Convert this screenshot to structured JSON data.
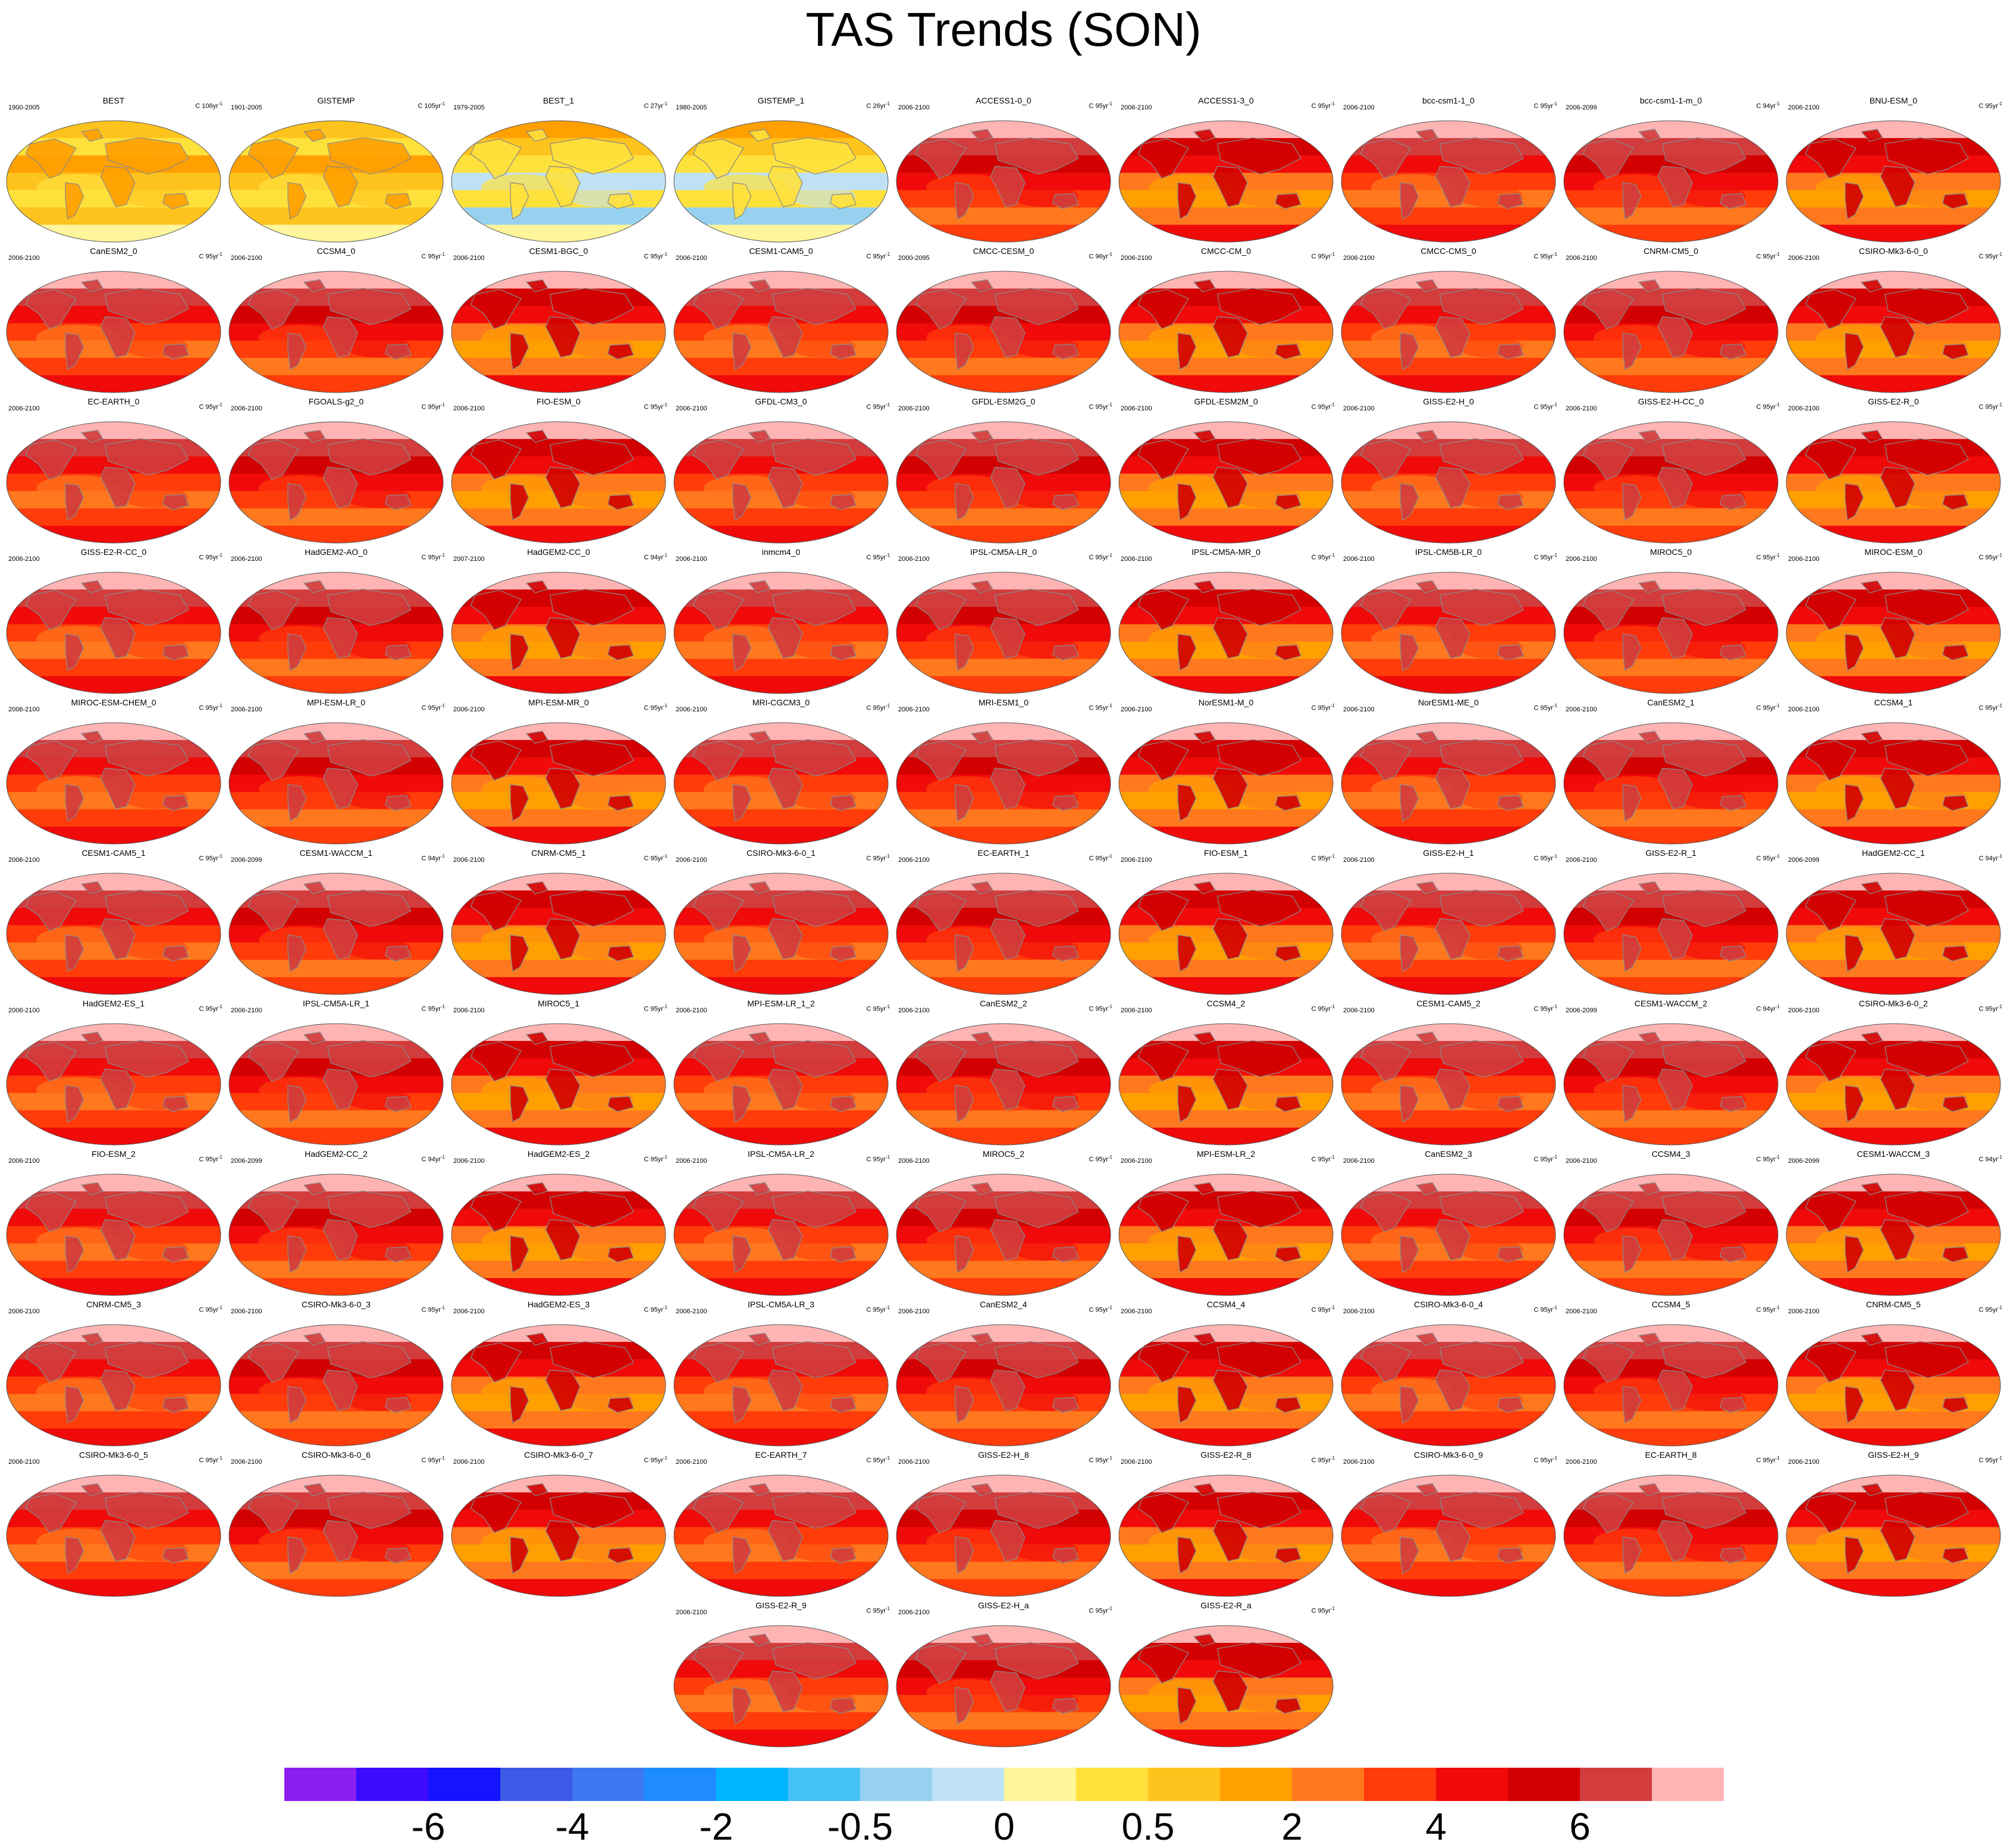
{
  "chart_data": {
    "type": "heatmap",
    "title": "TAS Trends (SON)",
    "projection": "global map panels, one per dataset/model run",
    "panels": [
      {
        "name": "BEST",
        "period": "1900-2005",
        "units": "C 106yr",
        "kind": "obs_long"
      },
      {
        "name": "GISTEMP",
        "period": "1901-2005",
        "units": "C 105yr",
        "kind": "obs_long"
      },
      {
        "name": "BEST_1",
        "period": "1979-2005",
        "units": "C 27yr",
        "kind": "obs_short"
      },
      {
        "name": "GISTEMP_1",
        "period": "1980-2005",
        "units": "C 26yr",
        "kind": "obs_short"
      },
      {
        "name": "ACCESS1-0_0",
        "period": "2006-2100",
        "units": "C 95yr",
        "kind": "model"
      },
      {
        "name": "ACCESS1-3_0",
        "period": "2006-2100",
        "units": "C 95yr",
        "kind": "model"
      },
      {
        "name": "bcc-csm1-1_0",
        "period": "2006-2100",
        "units": "C 95yr",
        "kind": "model"
      },
      {
        "name": "bcc-csm1-1-m_0",
        "period": "2006-2099",
        "units": "C 94yr",
        "kind": "model"
      },
      {
        "name": "BNU-ESM_0",
        "period": "2006-2100",
        "units": "C 95yr",
        "kind": "model"
      },
      {
        "name": "CanESM2_0",
        "period": "2006-2100",
        "units": "C 95yr",
        "kind": "model"
      },
      {
        "name": "CCSM4_0",
        "period": "2006-2100",
        "units": "C 95yr",
        "kind": "model"
      },
      {
        "name": "CESM1-BGC_0",
        "period": "2006-2100",
        "units": "C 95yr",
        "kind": "model"
      },
      {
        "name": "CESM1-CAM5_0",
        "period": "2006-2100",
        "units": "C 95yr",
        "kind": "model"
      },
      {
        "name": "CMCC-CESM_0",
        "period": "2000-2095",
        "units": "C 96yr",
        "kind": "model"
      },
      {
        "name": "CMCC-CM_0",
        "period": "2006-2100",
        "units": "C 95yr",
        "kind": "model"
      },
      {
        "name": "CMCC-CMS_0",
        "period": "2006-2100",
        "units": "C 95yr",
        "kind": "model"
      },
      {
        "name": "CNRM-CM5_0",
        "period": "2006-2100",
        "units": "C 95yr",
        "kind": "model"
      },
      {
        "name": "CSIRO-Mk3-6-0_0",
        "period": "2006-2100",
        "units": "C 95yr",
        "kind": "model"
      },
      {
        "name": "EC-EARTH_0",
        "period": "2006-2100",
        "units": "C 95yr",
        "kind": "model"
      },
      {
        "name": "FGOALS-g2_0",
        "period": "2006-2100",
        "units": "C 95yr",
        "kind": "model"
      },
      {
        "name": "FIO-ESM_0",
        "period": "2006-2100",
        "units": "C 95yr",
        "kind": "model"
      },
      {
        "name": "GFDL-CM3_0",
        "period": "2006-2100",
        "units": "C 95yr",
        "kind": "model"
      },
      {
        "name": "GFDL-ESM2G_0",
        "period": "2006-2100",
        "units": "C 95yr",
        "kind": "model"
      },
      {
        "name": "GFDL-ESM2M_0",
        "period": "2006-2100",
        "units": "C 95yr",
        "kind": "model"
      },
      {
        "name": "GISS-E2-H_0",
        "period": "2006-2100",
        "units": "C 95yr",
        "kind": "model"
      },
      {
        "name": "GISS-E2-H-CC_0",
        "period": "2006-2100",
        "units": "C 95yr",
        "kind": "model"
      },
      {
        "name": "GISS-E2-R_0",
        "period": "2006-2100",
        "units": "C 95yr",
        "kind": "model"
      },
      {
        "name": "GISS-E2-R-CC_0",
        "period": "2006-2100",
        "units": "C 95yr",
        "kind": "model"
      },
      {
        "name": "HadGEM2-AO_0",
        "period": "2006-2100",
        "units": "C 95yr",
        "kind": "model"
      },
      {
        "name": "HadGEM2-CC_0",
        "period": "2007-2100",
        "units": "C 94yr",
        "kind": "model"
      },
      {
        "name": "inmcm4_0",
        "period": "2006-2100",
        "units": "C 95yr",
        "kind": "model"
      },
      {
        "name": "IPSL-CM5A-LR_0",
        "period": "2006-2100",
        "units": "C 95yr",
        "kind": "model"
      },
      {
        "name": "IPSL-CM5A-MR_0",
        "period": "2006-2100",
        "units": "C 95yr",
        "kind": "model"
      },
      {
        "name": "IPSL-CM5B-LR_0",
        "period": "2006-2100",
        "units": "C 95yr",
        "kind": "model"
      },
      {
        "name": "MIROC5_0",
        "period": "2006-2100",
        "units": "C 95yr",
        "kind": "model"
      },
      {
        "name": "MIROC-ESM_0",
        "period": "2006-2100",
        "units": "C 95yr",
        "kind": "model"
      },
      {
        "name": "MIROC-ESM-CHEM_0",
        "period": "2006-2100",
        "units": "C 95yr",
        "kind": "model"
      },
      {
        "name": "MPI-ESM-LR_0",
        "period": "2006-2100",
        "units": "C 95yr",
        "kind": "model"
      },
      {
        "name": "MPI-ESM-MR_0",
        "period": "2006-2100",
        "units": "C 95yr",
        "kind": "model"
      },
      {
        "name": "MRI-CGCM3_0",
        "period": "2006-2100",
        "units": "C 95yr",
        "kind": "model"
      },
      {
        "name": "MRI-ESM1_0",
        "period": "2006-2100",
        "units": "C 95yr",
        "kind": "model"
      },
      {
        "name": "NorESM1-M_0",
        "period": "2006-2100",
        "units": "C 95yr",
        "kind": "model"
      },
      {
        "name": "NorESM1-ME_0",
        "period": "2006-2100",
        "units": "C 95yr",
        "kind": "model"
      },
      {
        "name": "CanESM2_1",
        "period": "2006-2100",
        "units": "C 95yr",
        "kind": "model"
      },
      {
        "name": "CCSM4_1",
        "period": "2006-2100",
        "units": "C 95yr",
        "kind": "model"
      },
      {
        "name": "CESM1-CAM5_1",
        "period": "2006-2100",
        "units": "C 95yr",
        "kind": "model"
      },
      {
        "name": "CESM1-WACCM_1",
        "period": "2006-2099",
        "units": "C 94yr",
        "kind": "model"
      },
      {
        "name": "CNRM-CM5_1",
        "period": "2006-2100",
        "units": "C 95yr",
        "kind": "model"
      },
      {
        "name": "CSIRO-Mk3-6-0_1",
        "period": "2006-2100",
        "units": "C 95yr",
        "kind": "model"
      },
      {
        "name": "EC-EARTH_1",
        "period": "2006-2100",
        "units": "C 95yr",
        "kind": "model"
      },
      {
        "name": "FIO-ESM_1",
        "period": "2006-2100",
        "units": "C 95yr",
        "kind": "model"
      },
      {
        "name": "GISS-E2-H_1",
        "period": "2006-2100",
        "units": "C 95yr",
        "kind": "model"
      },
      {
        "name": "GISS-E2-R_1",
        "period": "2006-2100",
        "units": "C 95yr",
        "kind": "model"
      },
      {
        "name": "HadGEM2-CC_1",
        "period": "2006-2099",
        "units": "C 94yr",
        "kind": "model"
      },
      {
        "name": "HadGEM2-ES_1",
        "period": "2006-2100",
        "units": "C 95yr",
        "kind": "model"
      },
      {
        "name": "IPSL-CM5A-LR_1",
        "period": "2006-2100",
        "units": "C 95yr",
        "kind": "model"
      },
      {
        "name": "MIROC5_1",
        "period": "2006-2100",
        "units": "C 95yr",
        "kind": "model"
      },
      {
        "name": "MPI-ESM-LR_1_2",
        "period": "2006-2100",
        "units": "C 95yr",
        "kind": "model"
      },
      {
        "name": "CanESM2_2",
        "period": "2006-2100",
        "units": "C 95yr",
        "kind": "model"
      },
      {
        "name": "CCSM4_2",
        "period": "2006-2100",
        "units": "C 95yr",
        "kind": "model"
      },
      {
        "name": "CESM1-CAM5_2",
        "period": "2006-2100",
        "units": "C 95yr",
        "kind": "model"
      },
      {
        "name": "CESM1-WACCM_2",
        "period": "2006-2099",
        "units": "C 94yr",
        "kind": "model"
      },
      {
        "name": "CSIRO-Mk3-6-0_2",
        "period": "2006-2100",
        "units": "C 95yr",
        "kind": "model"
      },
      {
        "name": "FIO-ESM_2",
        "period": "2006-2100",
        "units": "C 95yr",
        "kind": "model"
      },
      {
        "name": "HadGEM2-CC_2",
        "period": "2006-2099",
        "units": "C 94yr",
        "kind": "model"
      },
      {
        "name": "HadGEM2-ES_2",
        "period": "2006-2100",
        "units": "C 95yr",
        "kind": "model"
      },
      {
        "name": "IPSL-CM5A-LR_2",
        "period": "2006-2100",
        "units": "C 95yr",
        "kind": "model"
      },
      {
        "name": "MIROC5_2",
        "period": "2006-2100",
        "units": "C 95yr",
        "kind": "model"
      },
      {
        "name": "MPI-ESM-LR_2",
        "period": "2006-2100",
        "units": "C 95yr",
        "kind": "model"
      },
      {
        "name": "CanESM2_3",
        "period": "2006-2100",
        "units": "C 95yr",
        "kind": "model"
      },
      {
        "name": "CCSM4_3",
        "period": "2006-2100",
        "units": "C 95yr",
        "kind": "model"
      },
      {
        "name": "CESM1-WACCM_3",
        "period": "2006-2099",
        "units": "C 94yr",
        "kind": "model"
      },
      {
        "name": "CNRM-CM5_3",
        "period": "2006-2100",
        "units": "C 95yr",
        "kind": "model"
      },
      {
        "name": "CSIRO-Mk3-6-0_3",
        "period": "2006-2100",
        "units": "C 95yr",
        "kind": "model"
      },
      {
        "name": "HadGEM2-ES_3",
        "period": "2006-2100",
        "units": "C 95yr",
        "kind": "model"
      },
      {
        "name": "IPSL-CM5A-LR_3",
        "period": "2006-2100",
        "units": "C 95yr",
        "kind": "model"
      },
      {
        "name": "CanESM2_4",
        "period": "2006-2100",
        "units": "C 95yr",
        "kind": "model"
      },
      {
        "name": "CCSM4_4",
        "period": "2006-2100",
        "units": "C 95yr",
        "kind": "model"
      },
      {
        "name": "CSIRO-Mk3-6-0_4",
        "period": "2006-2100",
        "units": "C 95yr",
        "kind": "model"
      },
      {
        "name": "CCSM4_5",
        "period": "2006-2100",
        "units": "C 95yr",
        "kind": "model"
      },
      {
        "name": "CNRM-CM5_5",
        "period": "2006-2100",
        "units": "C 95yr",
        "kind": "model"
      },
      {
        "name": "CSIRO-Mk3-6-0_5",
        "period": "2006-2100",
        "units": "C 95yr",
        "kind": "model"
      },
      {
        "name": "CSIRO-Mk3-6-0_6",
        "period": "2006-2100",
        "units": "C 95yr",
        "kind": "model"
      },
      {
        "name": "CSIRO-Mk3-6-0_7",
        "period": "2006-2100",
        "units": "C 95yr",
        "kind": "model"
      },
      {
        "name": "EC-EARTH_7",
        "period": "2006-2100",
        "units": "C 95yr",
        "kind": "model"
      },
      {
        "name": "GISS-E2-H_8",
        "period": "2006-2100",
        "units": "C 95yr",
        "kind": "model"
      },
      {
        "name": "GISS-E2-R_8",
        "period": "2006-2100",
        "units": "C 95yr",
        "kind": "model"
      },
      {
        "name": "CSIRO-Mk3-6-0_9",
        "period": "2006-2100",
        "units": "C 95yr",
        "kind": "model"
      },
      {
        "name": "EC-EARTH_8",
        "period": "2006-2100",
        "units": "C 95yr",
        "kind": "model"
      },
      {
        "name": "GISS-E2-H_9",
        "period": "2006-2100",
        "units": "C 95yr",
        "kind": "model"
      },
      {
        "name": "GISS-E2-R_9",
        "period": "2006-2100",
        "units": "C 95yr",
        "kind": "model"
      },
      {
        "name": "GISS-E2-H_a",
        "period": "2006-2100",
        "units": "C 95yr",
        "kind": "model"
      },
      {
        "name": "GISS-E2-R_a",
        "period": "",
        "units": "C 95yr",
        "kind": "model"
      }
    ],
    "colorbar": {
      "colors": [
        "#8a1ef0",
        "#3c0aff",
        "#1414ff",
        "#3c5ae6",
        "#3c78f0",
        "#1e8cff",
        "#00b4ff",
        "#46c3f5",
        "#96d2f0",
        "#bee1f5",
        "#fff59b",
        "#ffe13c",
        "#ffc31e",
        "#ffa000",
        "#ff781e",
        "#ff3c0a",
        "#f00a0a",
        "#d20000",
        "#d23c3c",
        "#ffb4b4"
      ],
      "tick_labels": [
        "-6",
        "-4",
        "-2",
        "-0.5",
        "0",
        "0.5",
        "2",
        "4",
        "6"
      ],
      "tick_boundaries": [
        2,
        4,
        6,
        8,
        10,
        12,
        14,
        16,
        18
      ]
    }
  }
}
